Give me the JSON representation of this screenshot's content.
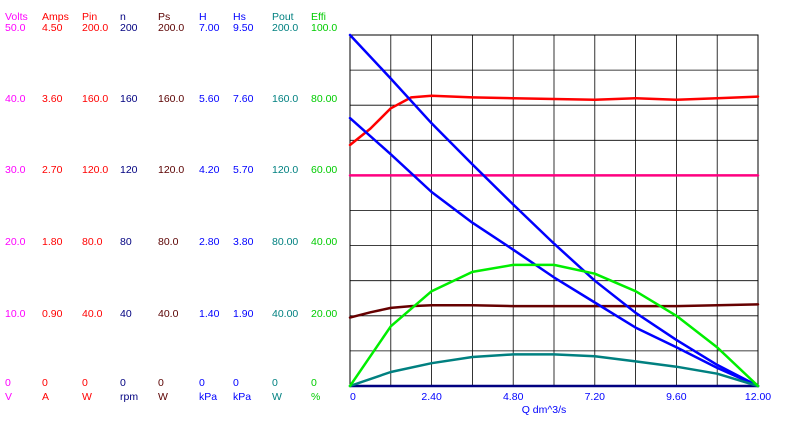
{
  "chart_data": {
    "type": "line",
    "xlabel": "Q  dm^3/s",
    "xlim": [
      0,
      12
    ],
    "x_tick_labels": [
      "0",
      "2.40",
      "4.80",
      "7.20",
      "9.60",
      "12.00"
    ],
    "grid": true,
    "axes": [
      {
        "id": "volts",
        "name": "Volts",
        "unit": "V",
        "color": "#ff00ff",
        "ticks": [
          "0",
          "10.0",
          "20.0",
          "30.0",
          "40.0",
          "50.0"
        ]
      },
      {
        "id": "amps",
        "name": "Amps",
        "unit": "A",
        "color": "#ff0000",
        "ticks": [
          "0",
          "0.90",
          "1.80",
          "2.70",
          "3.60",
          "4.50"
        ]
      },
      {
        "id": "pin",
        "name": "Pin",
        "unit": "W",
        "color": "#ff0000",
        "ticks": [
          "0",
          "40.0",
          "80.0",
          "120.0",
          "160.0",
          "200.0"
        ]
      },
      {
        "id": "n",
        "name": "n",
        "unit": "rpm",
        "color": "#000080",
        "ticks": [
          "0",
          "40",
          "80",
          "120",
          "160",
          "200"
        ]
      },
      {
        "id": "ps",
        "name": "Ps",
        "unit": "W",
        "color": "#5a0000",
        "ticks": [
          "0",
          "40.0",
          "80.0",
          "120.0",
          "160.0",
          "200.0"
        ]
      },
      {
        "id": "h",
        "name": "H",
        "unit": "kPa",
        "color": "#0000ff",
        "ticks": [
          "0",
          "1.40",
          "2.80",
          "4.20",
          "5.60",
          "7.00"
        ]
      },
      {
        "id": "hs",
        "name": "Hs",
        "unit": "kPa",
        "color": "#0000ff",
        "ticks": [
          "0",
          "1.90",
          "3.80",
          "5.70",
          "7.60",
          "9.50"
        ]
      },
      {
        "id": "pout",
        "name": "Pout",
        "unit": "W",
        "color": "#008080",
        "ticks": [
          "0",
          "40.00",
          "80.00",
          "120.0",
          "160.0",
          "200.0"
        ]
      },
      {
        "id": "effi",
        "name": "Effi",
        "unit": "%",
        "color": "#00cc00",
        "ticks": [
          "0",
          "20.00",
          "40.00",
          "60.00",
          "80.00",
          "100.0"
        ]
      }
    ],
    "series": [
      {
        "axis": "volts",
        "color": "#ff0080",
        "x": [
          0,
          12
        ],
        "y": [
          30,
          30
        ]
      },
      {
        "axis": "amps",
        "color": "#ff0000",
        "x": [
          0,
          0.6,
          1.2,
          1.8,
          2.4,
          3.6,
          4.8,
          6.0,
          7.2,
          8.4,
          9.6,
          10.8,
          12.0
        ],
        "y": [
          3.09,
          3.3,
          3.56,
          3.7,
          3.72,
          3.7,
          3.69,
          3.68,
          3.67,
          3.69,
          3.67,
          3.69,
          3.71
        ]
      },
      {
        "axis": "n",
        "color": "#000080",
        "x": [
          0,
          12
        ],
        "y": [
          0,
          0
        ]
      },
      {
        "axis": "ps",
        "color": "#660000",
        "x": [
          0,
          0.6,
          1.2,
          1.8,
          2.4,
          3.6,
          4.8,
          6.0,
          7.2,
          8.4,
          9.6,
          10.8,
          12.0
        ],
        "y": [
          39,
          42,
          44.5,
          45.5,
          46,
          46,
          45.5,
          45.5,
          45.5,
          45.5,
          45.5,
          46,
          46.5
        ]
      },
      {
        "axis": "h",
        "color": "#0000ff",
        "x": [
          0,
          1.2,
          2.4,
          3.6,
          4.8,
          6.0,
          7.2,
          8.4,
          9.6,
          10.8,
          12.0
        ],
        "y": [
          7.0,
          6.13,
          5.24,
          4.42,
          3.62,
          2.84,
          2.1,
          1.46,
          0.92,
          0.42,
          0
        ]
      },
      {
        "axis": "hs",
        "color": "#0000ff",
        "x": [
          0,
          1.2,
          2.4,
          3.6,
          4.8,
          6.0,
          7.2,
          8.4,
          9.6,
          10.8,
          12.0
        ],
        "y": [
          7.25,
          6.27,
          5.25,
          4.42,
          3.69,
          2.94,
          2.26,
          1.58,
          1.05,
          0.49,
          0
        ]
      },
      {
        "axis": "pout",
        "color": "#008080",
        "x": [
          0,
          1.2,
          2.4,
          3.6,
          4.8,
          6.0,
          7.2,
          8.4,
          9.6,
          10.8,
          12.0
        ],
        "y": [
          0,
          8,
          13,
          16.5,
          18,
          18,
          17,
          14,
          11,
          7,
          0
        ]
      },
      {
        "axis": "effi",
        "color": "#00ee00",
        "x": [
          0,
          1.2,
          2.4,
          3.6,
          4.8,
          6.0,
          7.2,
          8.4,
          9.6,
          10.8,
          12.0
        ],
        "y": [
          0,
          17,
          27,
          32.5,
          34.5,
          34.5,
          32,
          27,
          20,
          11,
          0
        ]
      }
    ]
  }
}
